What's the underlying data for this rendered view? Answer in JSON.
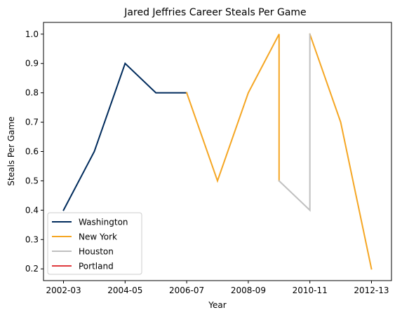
{
  "chart_data": {
    "type": "line",
    "title": "Jared Jeffries Career Steals Per Game",
    "xlabel": "Year",
    "ylabel": "Steals Per Game",
    "x_ticks": [
      "2002-03",
      "2004-05",
      "2006-07",
      "2008-09",
      "2010-11",
      "2012-13"
    ],
    "x_tick_positions": [
      0,
      2,
      4,
      6,
      8,
      10
    ],
    "xlim": [
      -0.65,
      10.65
    ],
    "y_ticks": [
      0.2,
      0.3,
      0.4,
      0.5,
      0.6,
      0.7,
      0.8,
      0.9,
      1.0
    ],
    "ylim": [
      0.16,
      1.04
    ],
    "grid": false,
    "legend_position": "lower-left",
    "series": [
      {
        "name": "Washington",
        "color": "#002B5C",
        "x": [
          0,
          1,
          2,
          3,
          4
        ],
        "y": [
          0.4,
          0.6,
          0.9,
          0.8,
          0.8
        ]
      },
      {
        "name": "New York",
        "color": "#F5A623",
        "segments": [
          {
            "x": [
              4,
              5,
              6,
              7,
              7
            ],
            "y": [
              0.8,
              0.5,
              0.8,
              1.0,
              0.5
            ]
          },
          {
            "x": [
              8,
              9,
              10
            ],
            "y": [
              1.0,
              0.7,
              0.2
            ]
          }
        ]
      },
      {
        "name": "Houston",
        "color": "#C0C0C0",
        "x": [
          7,
          8,
          8
        ],
        "y": [
          0.5,
          0.4,
          1.0
        ]
      },
      {
        "name": "Portland",
        "color": "#E03A3E",
        "x": [],
        "y": []
      }
    ]
  }
}
